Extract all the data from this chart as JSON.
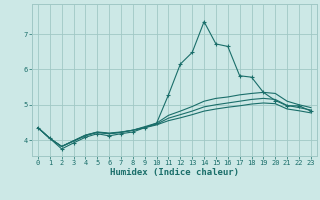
{
  "xlabel": "Humidex (Indice chaleur)",
  "bg_color": "#cce8e6",
  "grid_color": "#a0c8c5",
  "line_color": "#1a6e6a",
  "xlim": [
    -0.5,
    23.5
  ],
  "ylim": [
    3.55,
    7.85
  ],
  "yticks": [
    4,
    5,
    6,
    7
  ],
  "xticks": [
    0,
    1,
    2,
    3,
    4,
    5,
    6,
    7,
    8,
    9,
    10,
    11,
    12,
    13,
    14,
    15,
    16,
    17,
    18,
    19,
    20,
    21,
    22,
    23
  ],
  "series0": [
    4.35,
    4.05,
    3.75,
    3.92,
    4.08,
    4.18,
    4.12,
    4.18,
    4.23,
    4.35,
    4.48,
    5.28,
    6.15,
    6.48,
    7.35,
    6.72,
    6.65,
    5.82,
    5.78,
    5.35,
    5.12,
    4.97,
    4.97,
    4.82
  ],
  "series1": [
    4.35,
    4.05,
    3.82,
    3.97,
    4.12,
    4.22,
    4.18,
    4.22,
    4.28,
    4.38,
    4.48,
    4.7,
    4.82,
    4.95,
    5.1,
    5.18,
    5.22,
    5.28,
    5.32,
    5.35,
    5.32,
    5.1,
    5.0,
    4.92
  ],
  "series2": [
    4.35,
    4.05,
    3.82,
    3.98,
    4.14,
    4.23,
    4.2,
    4.23,
    4.28,
    4.36,
    4.45,
    4.62,
    4.72,
    4.82,
    4.94,
    5.0,
    5.05,
    5.1,
    5.15,
    5.18,
    5.15,
    4.98,
    4.92,
    4.85
  ],
  "series3": [
    4.35,
    4.05,
    3.82,
    3.98,
    4.14,
    4.22,
    4.18,
    4.22,
    4.28,
    4.35,
    4.43,
    4.55,
    4.63,
    4.72,
    4.82,
    4.88,
    4.93,
    4.97,
    5.02,
    5.05,
    5.03,
    4.88,
    4.83,
    4.77
  ]
}
